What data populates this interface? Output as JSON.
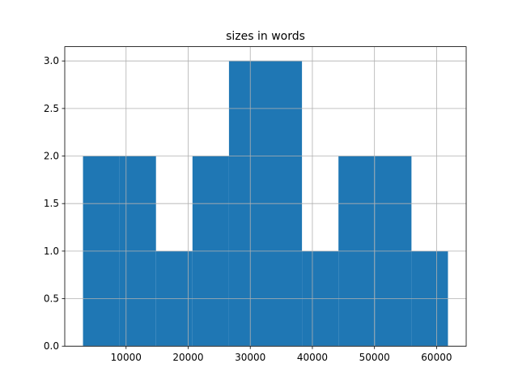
{
  "chart_data": {
    "type": "histogram",
    "title": "sizes in words",
    "bins": [
      3063,
      8940,
      14817,
      20694,
      26571,
      32448,
      38325,
      44202,
      50079,
      55956,
      61833
    ],
    "counts": [
      2,
      2,
      1,
      2,
      3,
      3,
      1,
      2,
      2,
      1
    ],
    "color": "#1f77b4",
    "xlim": [
      125,
      64770
    ],
    "xticks": [
      10000,
      20000,
      30000,
      40000,
      50000,
      60000
    ],
    "ylim": [
      0,
      3.15
    ],
    "yticks": [
      {
        "value": 0,
        "label": "0.0"
      },
      0.5,
      {
        "value": 1,
        "label": "1.0"
      },
      1.5,
      {
        "value": 2,
        "label": "2.0"
      },
      2.5,
      {
        "value": 3,
        "label": "3.0"
      }
    ],
    "grid": true
  }
}
